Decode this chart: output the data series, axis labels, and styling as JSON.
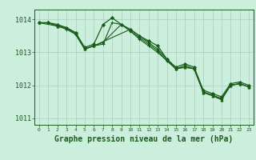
{
  "background_color": "#cceedd",
  "grid_color": "#aaccbb",
  "line_color": "#1a5c1a",
  "marker_color": "#1a5c1a",
  "xlabel": "Graphe pression niveau de la mer (hPa)",
  "xlabel_fontsize": 7.0,
  "xlim": [
    -0.5,
    23.5
  ],
  "ylim": [
    1010.8,
    1014.3
  ],
  "yticks": [
    1011,
    1012,
    1013,
    1014
  ],
  "xticks": [
    0,
    1,
    2,
    3,
    4,
    5,
    6,
    7,
    8,
    9,
    10,
    11,
    12,
    13,
    14,
    15,
    16,
    17,
    18,
    19,
    20,
    21,
    22,
    23
  ],
  "series": [
    {
      "x": [
        0,
        1,
        2,
        3,
        4,
        5,
        6,
        7,
        8,
        9,
        10,
        11,
        12,
        13,
        14,
        15,
        16,
        17,
        18,
        19,
        20,
        21,
        22,
        23
      ],
      "y": [
        1013.9,
        1013.9,
        1013.85,
        1013.75,
        1013.6,
        1013.15,
        1013.25,
        1013.85,
        1014.05,
        1013.85,
        1013.7,
        1013.5,
        1013.35,
        1013.2,
        1012.8,
        1012.55,
        1012.65,
        1012.55,
        1011.85,
        1011.75,
        1011.65,
        1012.05,
        1012.1,
        1012.0
      ],
      "marker": "D",
      "markersize": 2.0,
      "linewidth": 0.9
    },
    {
      "x": [
        0,
        1,
        2,
        3,
        4,
        5,
        6,
        7,
        8,
        9,
        10,
        11,
        12,
        13,
        14,
        15,
        16,
        17,
        18,
        19,
        20,
        21,
        22,
        23
      ],
      "y": [
        1013.9,
        1013.9,
        1013.8,
        1013.7,
        1013.55,
        1013.1,
        1013.2,
        1013.25,
        1013.9,
        1013.85,
        1013.65,
        1013.4,
        1013.2,
        1013.0,
        1012.75,
        1012.5,
        1012.6,
        1012.5,
        1011.8,
        1011.7,
        1011.6,
        1012.0,
        1012.05,
        1011.95
      ],
      "marker": "+",
      "markersize": 3.0,
      "linewidth": 0.8
    },
    {
      "x": [
        0,
        3,
        4,
        5,
        6,
        7,
        9,
        10,
        11,
        12,
        13,
        14,
        15,
        16,
        17,
        18,
        19,
        20,
        21,
        22,
        23
      ],
      "y": [
        1013.9,
        1013.75,
        1013.55,
        1013.1,
        1013.2,
        1013.3,
        1013.85,
        1013.65,
        1013.45,
        1013.25,
        1013.05,
        1012.75,
        1012.5,
        1012.55,
        1012.5,
        1011.8,
        1011.7,
        1011.58,
        1012.0,
        1012.05,
        1011.95
      ],
      "marker": "s",
      "markersize": 1.8,
      "linewidth": 0.8
    },
    {
      "x": [
        0,
        1,
        2,
        3,
        4,
        5,
        6,
        10,
        11,
        12,
        13,
        14,
        15,
        16,
        17,
        18,
        19,
        20,
        21,
        22,
        23
      ],
      "y": [
        1013.9,
        1013.9,
        1013.8,
        1013.75,
        1013.6,
        1013.1,
        1013.2,
        1013.7,
        1013.5,
        1013.3,
        1013.1,
        1012.8,
        1012.5,
        1012.55,
        1012.5,
        1011.78,
        1011.68,
        1011.56,
        1012.0,
        1012.05,
        1011.95
      ],
      "marker": "^",
      "markersize": 2.2,
      "linewidth": 0.8
    }
  ]
}
